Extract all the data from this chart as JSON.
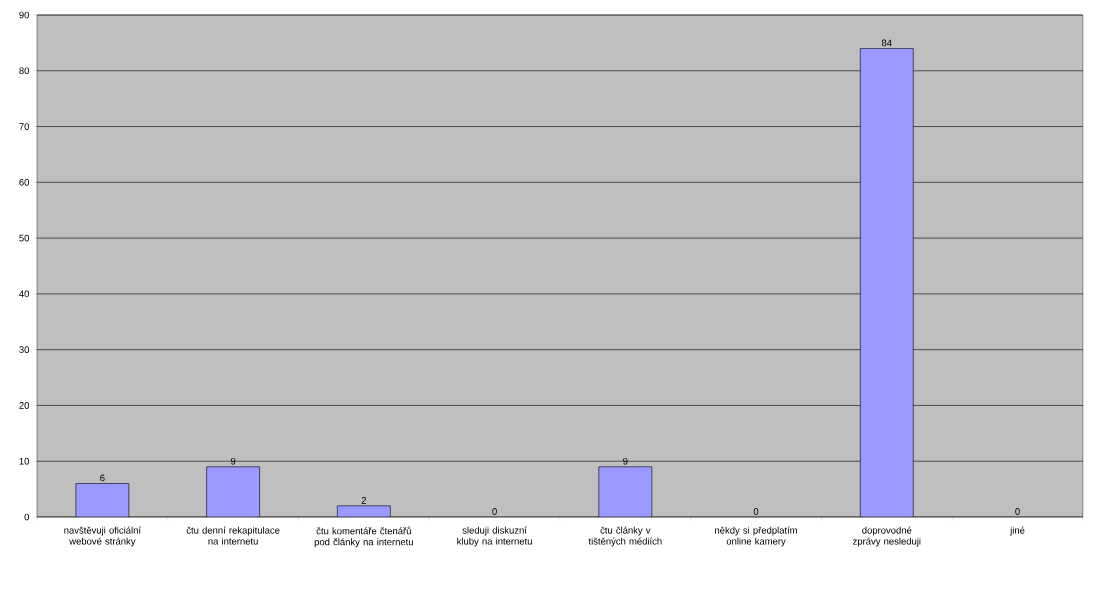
{
  "chart_data": {
    "type": "bar",
    "categories": [
      "navštěvuji oficiální webové stránky",
      "čtu denní rekapitulace na internetu",
      "čtu komentáře čtenářů pod články na internetu",
      "sleduji diskuzní kluby na internetu",
      "čtu články v tištěných médiích",
      "někdy si předplatím online kamery",
      "doprovodné zprávy nesleduji",
      "jiné"
    ],
    "values": [
      6,
      9,
      2,
      0,
      9,
      0,
      84,
      0
    ],
    "color": "#9999ff",
    "ylim": [
      0,
      90
    ],
    "yticks": [
      0,
      10,
      20,
      30,
      40,
      50,
      60,
      70,
      80,
      90
    ],
    "grid": "y",
    "data_labels": true
  }
}
